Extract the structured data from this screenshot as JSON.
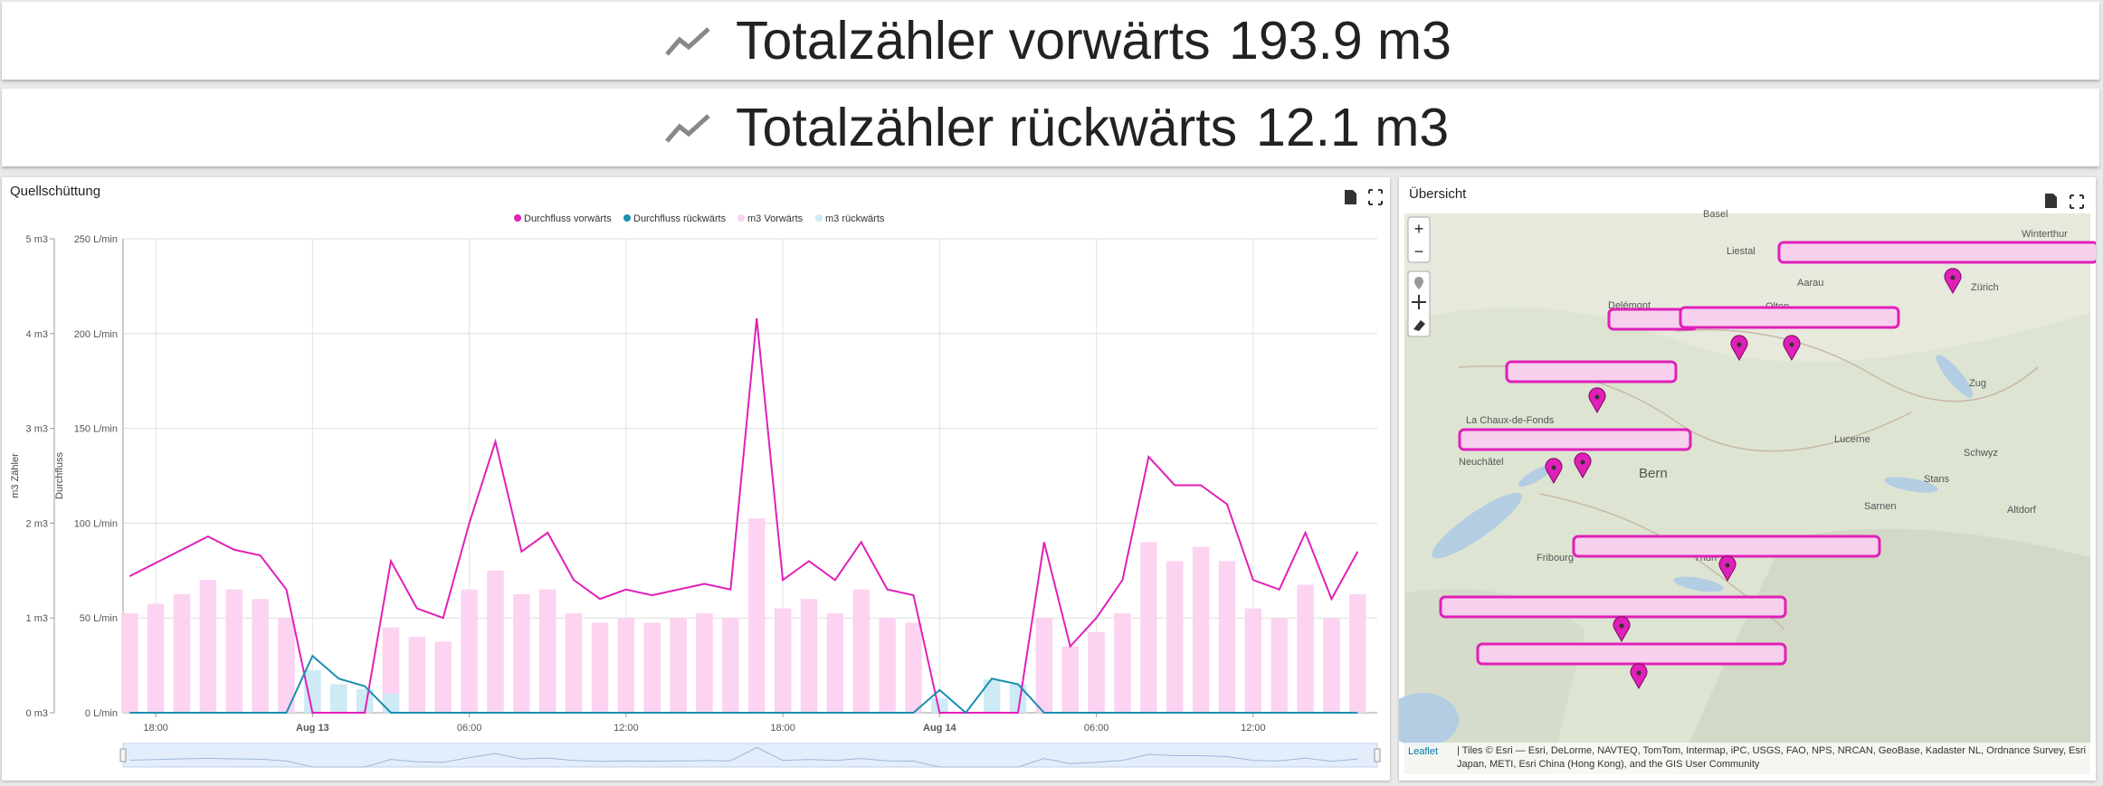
{
  "cards": [
    {
      "label": "Totalzähler vorwärts",
      "value": "193.9 m3"
    },
    {
      "label": "Totalzähler rückwärts",
      "value": "12.1 m3"
    }
  ],
  "chart_data": {
    "type": "line",
    "title": "Quellschüttung",
    "ylabel": "Durchfluss",
    "y2label": "m3 Zähler",
    "x": [
      "Aug 12 17:00",
      "Aug 12 18:00",
      "Aug 12 19:00",
      "Aug 12 20:00",
      "Aug 12 21:00",
      "Aug 12 22:00",
      "Aug 12 23:00",
      "Aug 13 00:00",
      "Aug 13 01:00",
      "Aug 13 02:00",
      "Aug 13 03:00",
      "Aug 13 04:00",
      "Aug 13 05:00",
      "Aug 13 06:00",
      "Aug 13 07:00",
      "Aug 13 08:00",
      "Aug 13 09:00",
      "Aug 13 10:00",
      "Aug 13 11:00",
      "Aug 13 12:00",
      "Aug 13 13:00",
      "Aug 13 14:00",
      "Aug 13 15:00",
      "Aug 13 16:00",
      "Aug 13 17:00",
      "Aug 13 18:00",
      "Aug 13 19:00",
      "Aug 13 20:00",
      "Aug 13 21:00",
      "Aug 13 22:00",
      "Aug 13 23:00",
      "Aug 14 00:00",
      "Aug 14 01:00",
      "Aug 14 02:00",
      "Aug 14 03:00",
      "Aug 14 04:00",
      "Aug 14 05:00",
      "Aug 14 06:00",
      "Aug 14 07:00",
      "Aug 14 08:00",
      "Aug 14 09:00",
      "Aug 14 10:00",
      "Aug 14 11:00",
      "Aug 14 12:00",
      "Aug 14 13:00",
      "Aug 14 14:00",
      "Aug 14 15:00",
      "Aug 14 16:00"
    ],
    "xlim": [
      "Aug 12 16:45",
      "Aug 14 16:45"
    ],
    "xticks": [
      {
        "value": "Aug 12 18:00",
        "label": "18:00"
      },
      {
        "value": "Aug 13 00:00",
        "label": "Aug 13"
      },
      {
        "value": "Aug 13 06:00",
        "label": "06:00"
      },
      {
        "value": "Aug 13 12:00",
        "label": "12:00"
      },
      {
        "value": "Aug 13 18:00",
        "label": "18:00"
      },
      {
        "value": "Aug 14 00:00",
        "label": "Aug 14"
      },
      {
        "value": "Aug 14 06:00",
        "label": "06:00"
      },
      {
        "value": "Aug 14 12:00",
        "label": "12:00"
      }
    ],
    "ylim": [
      0,
      250
    ],
    "yticks": [
      {
        "value": 0,
        "label": "0 L/min"
      },
      {
        "value": 50,
        "label": "50 L/min"
      },
      {
        "value": 100,
        "label": "100 L/min"
      },
      {
        "value": 150,
        "label": "150 L/min"
      },
      {
        "value": 200,
        "label": "200 L/min"
      },
      {
        "value": 250,
        "label": "250 L/min"
      }
    ],
    "y2lim": [
      0,
      5
    ],
    "y2ticks": [
      {
        "value": 0,
        "label": "0 m3"
      },
      {
        "value": 1,
        "label": "1 m3"
      },
      {
        "value": 2,
        "label": "2 m3"
      },
      {
        "value": 3,
        "label": "3 m3"
      },
      {
        "value": 4,
        "label": "4 m3"
      },
      {
        "value": 5,
        "label": "5 m3"
      }
    ],
    "grid": true,
    "series": [
      {
        "name": "Durchfluss vorwärts",
        "type": "line",
        "color": "#e020b8",
        "values": [
          72,
          79,
          86,
          93,
          86,
          83,
          65,
          0,
          0,
          0,
          80,
          55,
          50,
          100,
          143,
          85,
          95,
          70,
          60,
          65,
          62,
          65,
          68,
          65,
          208,
          70,
          80,
          70,
          90,
          65,
          62,
          0,
          0,
          0,
          0,
          90,
          35,
          50,
          70,
          135,
          120,
          120,
          110,
          70,
          65,
          95,
          60,
          85
        ]
      },
      {
        "name": "Durchfluss rückwärts",
        "type": "line",
        "color": "#1a8fb0",
        "values": [
          0,
          0,
          0,
          0,
          0,
          0,
          0,
          30,
          18,
          14,
          0,
          0,
          0,
          0,
          0,
          0,
          0,
          0,
          0,
          0,
          0,
          0,
          0,
          0,
          0,
          0,
          0,
          0,
          0,
          0,
          0,
          12,
          0,
          18,
          15,
          0,
          0,
          0,
          0,
          0,
          0,
          0,
          0,
          0,
          0,
          0,
          0,
          0
        ]
      },
      {
        "name": "m3 Vorwärts",
        "type": "bar",
        "axis": "y2",
        "color": "#fcd3f1",
        "values": [
          1.05,
          1.15,
          1.25,
          1.4,
          1.3,
          1.2,
          1.0,
          0,
          0,
          0,
          0.9,
          0.8,
          0.75,
          1.3,
          1.5,
          1.25,
          1.3,
          1.05,
          0.95,
          1.0,
          0.95,
          1.0,
          1.05,
          1.0,
          2.05,
          1.1,
          1.2,
          1.05,
          1.3,
          1.0,
          0.95,
          0,
          0,
          0,
          0,
          1.0,
          0.7,
          0.85,
          1.05,
          1.8,
          1.6,
          1.75,
          1.6,
          1.1,
          1.0,
          1.35,
          1.0,
          1.25
        ]
      },
      {
        "name": "m3 rückwärts",
        "type": "bar",
        "axis": "y2",
        "color": "#cdeaf5",
        "values": [
          0,
          0,
          0,
          0,
          0,
          0,
          0,
          0.45,
          0.3,
          0.25,
          0.2,
          0,
          0,
          0,
          0,
          0,
          0,
          0,
          0,
          0,
          0,
          0,
          0,
          0,
          0,
          0,
          0,
          0,
          0,
          0,
          0,
          0.15,
          0,
          0.35,
          0.3,
          0,
          0,
          0,
          0,
          0,
          0,
          0,
          0,
          0,
          0,
          0,
          0,
          0
        ]
      }
    ]
  },
  "map": {
    "title": "Übersicht",
    "zoom_in": "+",
    "zoom_out": "−",
    "places": [
      "Basel",
      "Liestal",
      "Aarau",
      "Zürich",
      "Winterthur",
      "Delémont",
      "Olten",
      "Zug",
      "Lucerne",
      "Schwyz",
      "Stans",
      "Sarnen",
      "Altdorf",
      "Bern",
      "Neuchâtel",
      "La Chaux-de-Fonds",
      "Fribourg",
      "Thun"
    ],
    "attribution_link": "Leaflet",
    "attribution": "| Tiles © Esri — Esri, DeLorme, NAVTEQ, TomTom, Intermap, iPC, USGS, FAO, NPS, NRCAN, GeoBase, Kadaster NL, Ordnance Survey, Esri Japan, METI, Esri China (Hong Kong), and the GIS User Community"
  }
}
